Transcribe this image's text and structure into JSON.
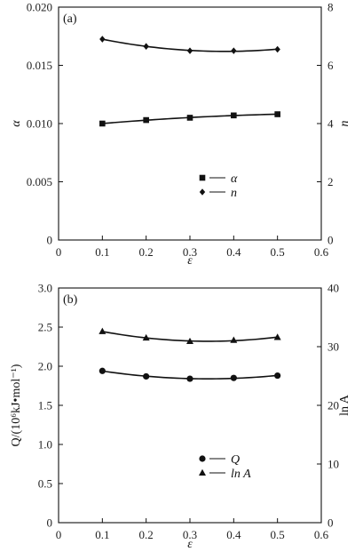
{
  "chart_data": [
    {
      "type": "line",
      "panel_label": "(a)",
      "x": [
        0.1,
        0.2,
        0.3,
        0.4,
        0.5
      ],
      "xlabel": "ε",
      "xlim": [
        0,
        0.6
      ],
      "xticks": [
        "0",
        "0.1",
        "0.2",
        "0.3",
        "0.4",
        "0.5",
        "0.6"
      ],
      "ylabel_left": "α",
      "ylim_left": [
        0,
        0.02
      ],
      "yticks_left": [
        "0",
        "0.005",
        "0.010",
        "0.015",
        "0.020"
      ],
      "ylabel_right": "n",
      "ylim_right": [
        0,
        8
      ],
      "yticks_right": [
        "0",
        "2",
        "4",
        "6",
        "8"
      ],
      "series": [
        {
          "name": "α",
          "axis": "left",
          "marker": "square",
          "values": [
            0.01,
            0.0103,
            0.0105,
            0.0107,
            0.0108
          ]
        },
        {
          "name": "n",
          "axis": "right",
          "marker": "diamond",
          "values": [
            6.9,
            6.65,
            6.5,
            6.5,
            6.55
          ]
        }
      ],
      "legend_position": "lower-right",
      "grid": false
    },
    {
      "type": "line",
      "panel_label": "(b)",
      "x": [
        0.1,
        0.2,
        0.3,
        0.4,
        0.5
      ],
      "xlabel": "ε",
      "xlim": [
        0,
        0.6
      ],
      "xticks": [
        "0",
        "0.1",
        "0.2",
        "0.3",
        "0.4",
        "0.5",
        "0.6"
      ],
      "ylabel_left": "Q/(10⁶kJ•mol⁻¹)",
      "ylim_left": [
        0,
        3.0
      ],
      "yticks_left": [
        "0",
        "0.5",
        "1.0",
        "1.5",
        "2.0",
        "2.5",
        "3.0"
      ],
      "ylabel_right": "ln A",
      "ylim_right": [
        0,
        40
      ],
      "yticks_right": [
        "0",
        "10",
        "20",
        "30",
        "40"
      ],
      "series": [
        {
          "name": "Q",
          "axis": "left",
          "marker": "circle",
          "values": [
            1.94,
            1.87,
            1.84,
            1.85,
            1.88
          ]
        },
        {
          "name": "ln A",
          "axis": "right",
          "marker": "triangle",
          "values": [
            32.6,
            31.5,
            30.9,
            31.1,
            31.6
          ]
        }
      ],
      "legend_position": "lower-right",
      "grid": false
    }
  ]
}
